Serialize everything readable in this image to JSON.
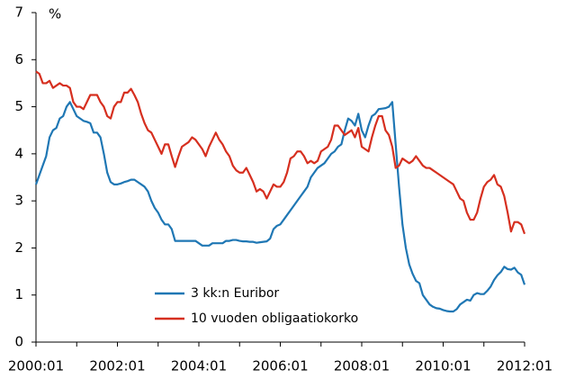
{
  "chart_data": {
    "type": "line",
    "y_label": "%",
    "categories": [
      "2000:01",
      null,
      null,
      null,
      null,
      null,
      null,
      null,
      null,
      null,
      null,
      null,
      null,
      null,
      null,
      null,
      null,
      null,
      null,
      null,
      null,
      null,
      null,
      null,
      "2002:01",
      null,
      null,
      null,
      null,
      null,
      null,
      null,
      null,
      null,
      null,
      null,
      null,
      null,
      null,
      null,
      null,
      null,
      null,
      null,
      null,
      null,
      null,
      null,
      "2004:01",
      null,
      null,
      null,
      null,
      null,
      null,
      null,
      null,
      null,
      null,
      null,
      null,
      null,
      null,
      null,
      null,
      null,
      null,
      null,
      null,
      null,
      null,
      null,
      "2006:01",
      null,
      null,
      null,
      null,
      null,
      null,
      null,
      null,
      null,
      null,
      null,
      null,
      null,
      null,
      null,
      null,
      null,
      null,
      null,
      null,
      null,
      null,
      null,
      "2008:01",
      null,
      null,
      null,
      null,
      null,
      null,
      null,
      null,
      null,
      null,
      null,
      null,
      null,
      null,
      null,
      null,
      null,
      null,
      null,
      null,
      null,
      null,
      null,
      "2010:01",
      null,
      null,
      null,
      null,
      null,
      null,
      null,
      null,
      null,
      null,
      null,
      null,
      null,
      null,
      null,
      null,
      null,
      null,
      null,
      null,
      null,
      null,
      null,
      "2012:01"
    ],
    "series": [
      {
        "name": "3 kk:n Euribor",
        "color": "#1f77b4",
        "values": [
          3.35,
          3.55,
          3.75,
          3.95,
          4.35,
          4.5,
          4.55,
          4.75,
          4.8,
          5.0,
          5.1,
          4.95,
          4.8,
          4.75,
          4.7,
          4.68,
          4.65,
          4.45,
          4.45,
          4.35,
          4.0,
          3.6,
          3.4,
          3.35,
          3.35,
          3.37,
          3.4,
          3.42,
          3.45,
          3.45,
          3.4,
          3.35,
          3.3,
          3.2,
          3.0,
          2.85,
          2.75,
          2.6,
          2.5,
          2.5,
          2.4,
          2.15,
          2.15,
          2.15,
          2.15,
          2.15,
          2.15,
          2.15,
          2.1,
          2.05,
          2.05,
          2.05,
          2.1,
          2.1,
          2.1,
          2.1,
          2.15,
          2.15,
          2.17,
          2.17,
          2.15,
          2.14,
          2.14,
          2.13,
          2.13,
          2.11,
          2.12,
          2.13,
          2.14,
          2.2,
          2.4,
          2.47,
          2.5,
          2.6,
          2.7,
          2.8,
          2.9,
          3.0,
          3.1,
          3.2,
          3.3,
          3.5,
          3.6,
          3.7,
          3.75,
          3.8,
          3.9,
          4.0,
          4.05,
          4.15,
          4.2,
          4.5,
          4.75,
          4.7,
          4.6,
          4.85,
          4.5,
          4.35,
          4.6,
          4.8,
          4.85,
          4.95,
          4.96,
          4.97,
          5.0,
          5.1,
          4.2,
          3.3,
          2.5,
          2.0,
          1.65,
          1.45,
          1.3,
          1.25,
          1.0,
          0.9,
          0.8,
          0.75,
          0.72,
          0.71,
          0.68,
          0.66,
          0.65,
          0.65,
          0.7,
          0.8,
          0.85,
          0.9,
          0.88,
          1.0,
          1.04,
          1.02,
          1.02,
          1.09,
          1.18,
          1.32,
          1.42,
          1.49,
          1.6,
          1.55,
          1.54,
          1.58,
          1.48,
          1.43,
          1.22
        ]
      },
      {
        "name": "10 vuoden obligaatiokorko",
        "color": "#d62f1f",
        "values": [
          5.75,
          5.7,
          5.5,
          5.5,
          5.55,
          5.4,
          5.45,
          5.5,
          5.45,
          5.45,
          5.4,
          5.1,
          5.0,
          5.0,
          4.95,
          5.1,
          5.25,
          5.25,
          5.25,
          5.1,
          5.0,
          4.8,
          4.75,
          5.0,
          5.1,
          5.1,
          5.3,
          5.3,
          5.38,
          5.25,
          5.1,
          4.85,
          4.65,
          4.5,
          4.45,
          4.3,
          4.15,
          4.0,
          4.2,
          4.2,
          3.95,
          3.72,
          3.95,
          4.15,
          4.2,
          4.25,
          4.35,
          4.3,
          4.2,
          4.1,
          3.95,
          4.15,
          4.3,
          4.45,
          4.3,
          4.2,
          4.05,
          3.95,
          3.75,
          3.65,
          3.6,
          3.6,
          3.7,
          3.55,
          3.4,
          3.2,
          3.25,
          3.2,
          3.05,
          3.2,
          3.35,
          3.3,
          3.3,
          3.4,
          3.6,
          3.9,
          3.95,
          4.05,
          4.05,
          3.95,
          3.8,
          3.85,
          3.8,
          3.85,
          4.05,
          4.1,
          4.15,
          4.3,
          4.6,
          4.6,
          4.5,
          4.4,
          4.45,
          4.5,
          4.35,
          4.55,
          4.15,
          4.1,
          4.05,
          4.35,
          4.6,
          4.8,
          4.8,
          4.5,
          4.4,
          4.15,
          3.7,
          3.75,
          3.9,
          3.85,
          3.8,
          3.85,
          3.95,
          3.85,
          3.75,
          3.7,
          3.7,
          3.65,
          3.6,
          3.55,
          3.5,
          3.45,
          3.4,
          3.35,
          3.2,
          3.05,
          3.0,
          2.75,
          2.6,
          2.6,
          2.75,
          3.05,
          3.3,
          3.4,
          3.45,
          3.55,
          3.35,
          3.3,
          3.1,
          2.75,
          2.35,
          2.55,
          2.55,
          2.5,
          2.3
        ]
      }
    ],
    "ylim": [
      0,
      7
    ],
    "yticks": [
      0,
      1,
      2,
      3,
      4,
      5,
      6,
      7
    ],
    "grid": false,
    "legend": "bottom"
  }
}
